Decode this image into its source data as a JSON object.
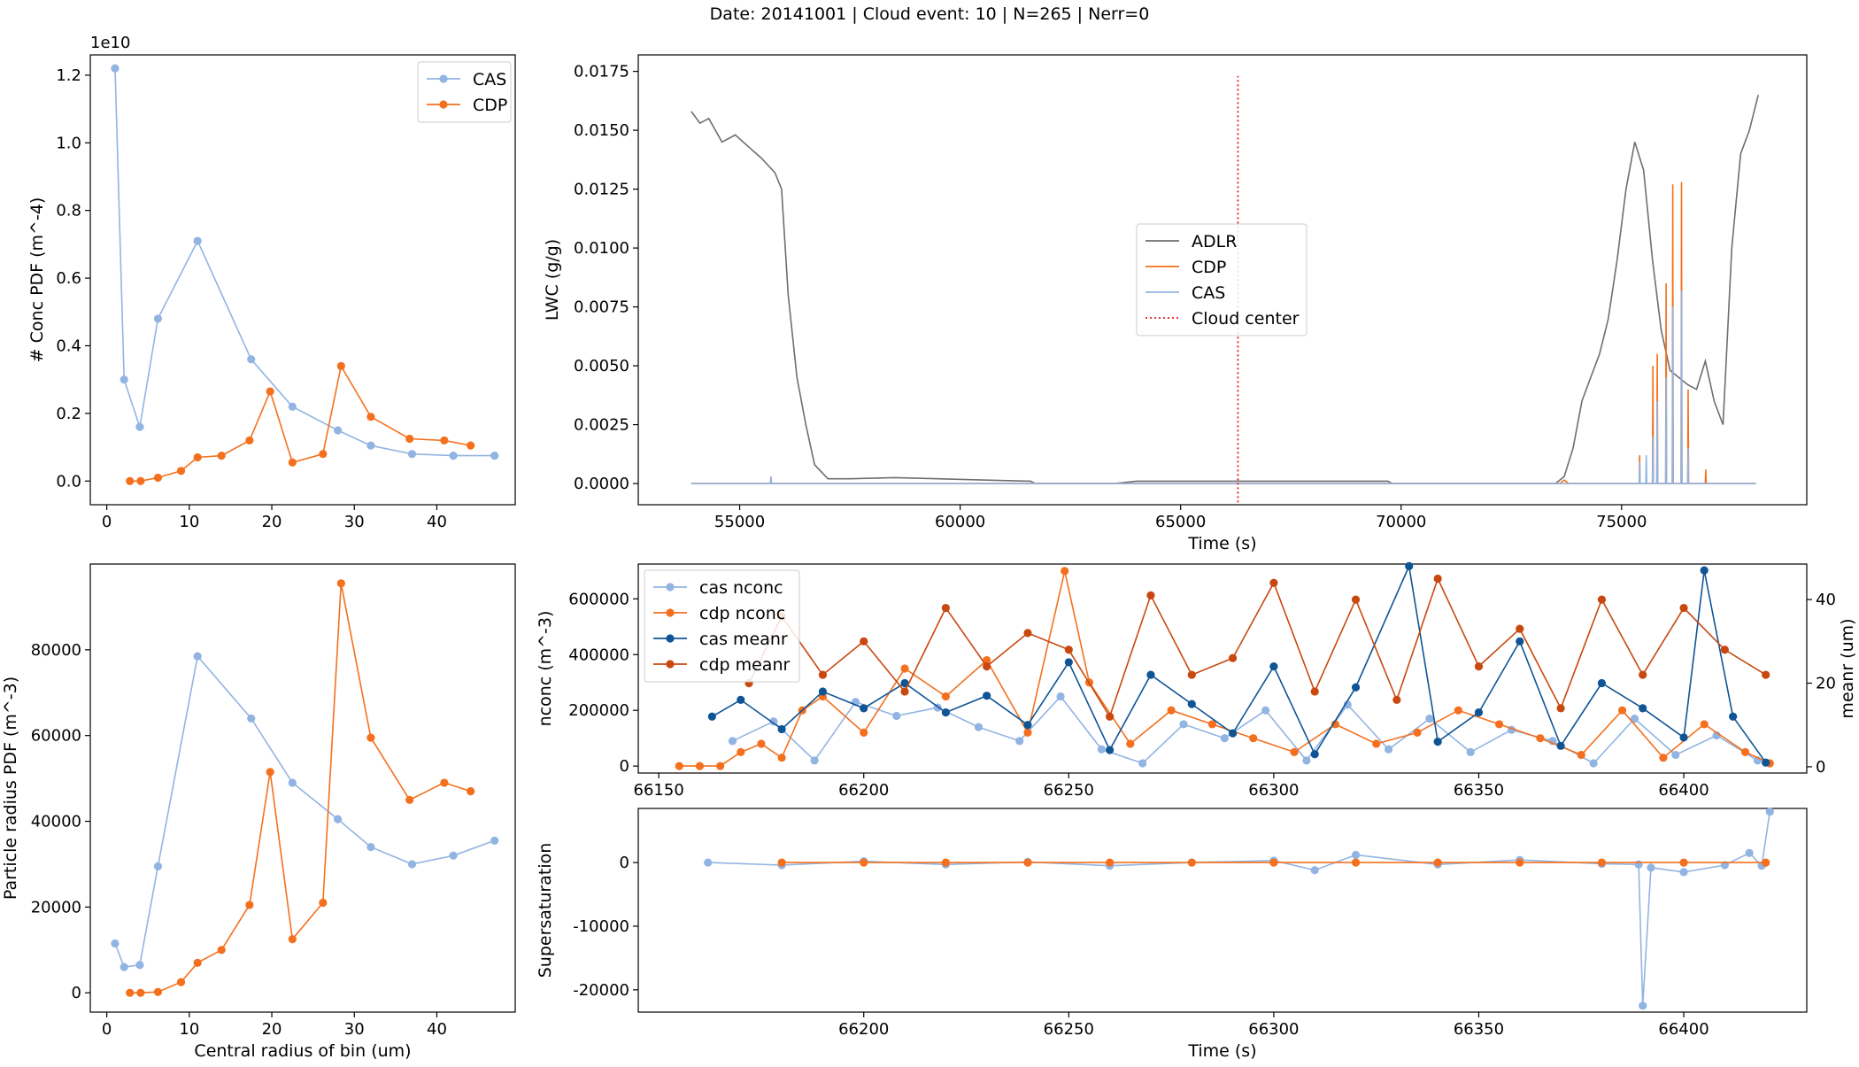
{
  "suptitle": "Date: 20141001 | Cloud event: 10 | N=265 | Nerr=0",
  "chart_data": [
    {
      "id": "conc",
      "type": "line",
      "ylabel": "# Conc PDF (m^-4)",
      "xlabel": "",
      "offset_text": "1e10",
      "xlim": [
        -2,
        49.5
      ],
      "ylim": [
        -0.07,
        1.26
      ],
      "xticks": [
        0,
        10,
        20,
        30,
        40
      ],
      "yticks": [
        0.0,
        0.2,
        0.4,
        0.6,
        0.8,
        1.0,
        1.2
      ],
      "ytick_labels": [
        "0.0",
        "0.2",
        "0.4",
        "0.6",
        "0.8",
        "1.0",
        "1.2"
      ],
      "legend": "upper right",
      "series": [
        {
          "name": "CAS",
          "color": "#92b4e3",
          "marker": true,
          "x": [
            1,
            2.1,
            4,
            6.2,
            11,
            17.5,
            22.5,
            28,
            32,
            37,
            42,
            47
          ],
          "y": [
            1.22,
            0.3,
            0.16,
            0.48,
            0.71,
            0.36,
            0.22,
            0.15,
            0.105,
            0.08,
            0.075,
            0.075
          ]
        },
        {
          "name": "CDP",
          "color": "#f4701e",
          "marker": true,
          "x": [
            2.8,
            4.1,
            6.2,
            9,
            11,
            13.9,
            17.3,
            19.8,
            22.5,
            26.2,
            28.4,
            32,
            36.7,
            40.9,
            44.1
          ],
          "y": [
            0.0,
            0.0,
            0.01,
            0.03,
            0.07,
            0.075,
            0.12,
            0.265,
            0.055,
            0.08,
            0.34,
            0.19,
            0.125,
            0.12,
            0.105
          ]
        }
      ]
    },
    {
      "id": "radius",
      "type": "line",
      "ylabel": "Particle radius PDF (m^-3)",
      "xlabel": "Central radius of bin (um)",
      "xlim": [
        -2,
        49.5
      ],
      "ylim": [
        -4500,
        100000
      ],
      "xticks": [
        0,
        10,
        20,
        30,
        40
      ],
      "yticks": [
        0,
        20000,
        40000,
        60000,
        80000
      ],
      "legend": "none",
      "series": [
        {
          "name": "CAS",
          "color": "#92b4e3",
          "marker": true,
          "x": [
            1,
            2.1,
            4,
            6.2,
            11,
            17.5,
            22.5,
            28,
            32,
            37,
            42,
            47
          ],
          "y": [
            11500,
            6000,
            6500,
            29500,
            78500,
            64000,
            49000,
            40500,
            34000,
            30000,
            32000,
            35500
          ]
        },
        {
          "name": "CDP",
          "color": "#f4701e",
          "marker": true,
          "x": [
            2.8,
            4.1,
            6.2,
            9,
            11,
            13.9,
            17.3,
            19.8,
            22.5,
            26.2,
            28.4,
            32,
            36.7,
            40.9,
            44.1
          ],
          "y": [
            0,
            0,
            200,
            2500,
            7000,
            10000,
            20500,
            51500,
            12500,
            21000,
            95500,
            59500,
            45000,
            49000,
            47000
          ]
        }
      ]
    },
    {
      "id": "lwc",
      "type": "line",
      "ylabel": "LWC (g/g)",
      "xlabel": "Time (s)",
      "xlim": [
        52700,
        79200
      ],
      "ylim": [
        -0.0009,
        0.0182
      ],
      "xticks": [
        55000,
        60000,
        65000,
        70000,
        75000
      ],
      "yticks": [
        0.0,
        0.0025,
        0.005,
        0.0075,
        0.01,
        0.0125,
        0.015,
        0.0175
      ],
      "ytick_labels": [
        "0.0000",
        "0.0025",
        "0.0050",
        "0.0075",
        "0.0100",
        "0.0125",
        "0.0150",
        "0.0175"
      ],
      "legend": "center",
      "series": [
        {
          "name": "ADLR",
          "color": "#6e6e6e",
          "marker": false,
          "x": [
            53900,
            54100,
            54300,
            54600,
            54900,
            55200,
            55500,
            55800,
            55950,
            56100,
            56300,
            56500,
            56700,
            57000,
            57500,
            58500,
            59500,
            60500,
            61600,
            61700,
            63500,
            64000,
            69700,
            69800,
            72500,
            73500,
            73700,
            73900,
            74100,
            74300,
            74500,
            74700,
            74900,
            75100,
            75300,
            75500,
            75700,
            75900,
            76100,
            76300,
            76500,
            76700,
            76900,
            77100,
            77300,
            77500,
            77700,
            77900,
            78100
          ],
          "y": [
            0.0158,
            0.0153,
            0.0155,
            0.0145,
            0.0148,
            0.0143,
            0.0138,
            0.0132,
            0.0125,
            0.008,
            0.0045,
            0.0025,
            0.0008,
            0.0002,
            0.0002,
            0.00025,
            0.0002,
            0.00015,
            0.0001,
            0.0,
            0.0,
            0.0001,
            0.0001,
            0.0,
            0.0,
            0.0,
            0.0003,
            0.0015,
            0.0035,
            0.0045,
            0.0055,
            0.007,
            0.0095,
            0.0125,
            0.0145,
            0.0133,
            0.0095,
            0.0065,
            0.0048,
            0.0045,
            0.0042,
            0.004,
            0.0052,
            0.0035,
            0.0025,
            0.01,
            0.014,
            0.015,
            0.0165
          ]
        },
        {
          "name": "CDP",
          "color": "#f4701e",
          "marker": false,
          "x": [
            53900,
            55700,
            55710,
            55720,
            73600,
            73700,
            73800,
            75400,
            75410,
            75420,
            75700,
            75710,
            75720,
            75800,
            75810,
            75820,
            76000,
            76010,
            76020,
            76150,
            76160,
            76170,
            76350,
            76360,
            76370,
            76500,
            76510,
            76520,
            76900,
            76910,
            76920,
            78050
          ],
          "y": [
            0.0,
            0.0,
            0.0003,
            0.0,
            0.0,
            0.00015,
            0.0,
            0.0,
            0.0012,
            0.0,
            0.0,
            0.005,
            0.0,
            0.0,
            0.0055,
            0.0,
            0.0,
            0.0085,
            0.0,
            0.0,
            0.0127,
            0.0,
            0.0,
            0.0128,
            0.0,
            0.0,
            0.004,
            0.0,
            0.0,
            0.0006,
            0.0,
            0.0
          ]
        },
        {
          "name": "CAS",
          "color": "#92b4e3",
          "marker": false,
          "x": [
            53900,
            55700,
            55710,
            55720,
            75400,
            75410,
            75420,
            75550,
            75560,
            75570,
            75700,
            75710,
            75720,
            75800,
            75810,
            75820,
            76000,
            76010,
            76020,
            76150,
            76160,
            76170,
            76350,
            76360,
            76370,
            76500,
            76510,
            76520,
            78050
          ],
          "y": [
            0.0,
            0.0,
            0.0003,
            0.0,
            0.0,
            0.0009,
            0.0,
            0.0,
            0.0012,
            0.0,
            0.0,
            0.002,
            0.0,
            0.0,
            0.0035,
            0.0,
            0.0,
            0.0045,
            0.0,
            0.0,
            0.0075,
            0.0,
            0.0,
            0.0082,
            0.0,
            0.0,
            0.0015,
            0.0,
            0.0
          ]
        }
      ],
      "vline": {
        "name": "Cloud center",
        "x": 66300,
        "ymin": -0.0008,
        "ymax": 0.0173,
        "color": "#e41a1c"
      }
    },
    {
      "id": "nconc",
      "type": "line",
      "ylabel": "nconc (m^-3)",
      "ylabel_right": "meanr (um)",
      "xlabel": "",
      "xlim": [
        66145,
        66430
      ],
      "ylim": [
        -25000,
        725000
      ],
      "ylim_right": [
        -1.5,
        48.5
      ],
      "xticks": [
        66150,
        66200,
        66250,
        66300,
        66350,
        66400
      ],
      "yticks": [
        0,
        200000,
        400000,
        600000
      ],
      "yticks_right": [
        0,
        20,
        40
      ],
      "legend": "upper left",
      "series": [
        {
          "name": "cas nconc",
          "color": "#92b4e3",
          "marker": true,
          "axis": "left",
          "x": [
            66168,
            66178,
            66188,
            66198,
            66208,
            66218,
            66228,
            66238,
            66248,
            66258,
            66268,
            66278,
            66288,
            66298,
            66308,
            66318,
            66328,
            66338,
            66348,
            66358,
            66368,
            66378,
            66388,
            66398,
            66408,
            66418
          ],
          "y": [
            90000,
            160000,
            20000,
            230000,
            180000,
            210000,
            140000,
            90000,
            250000,
            60000,
            10000,
            150000,
            100000,
            200000,
            20000,
            220000,
            60000,
            170000,
            50000,
            130000,
            90000,
            10000,
            170000,
            40000,
            110000,
            20000
          ]
        },
        {
          "name": "cdp nconc",
          "color": "#f4701e",
          "marker": true,
          "axis": "left",
          "x": [
            66155,
            66160,
            66165,
            66170,
            66175,
            66180,
            66185,
            66190,
            66200,
            66210,
            66220,
            66230,
            66240,
            66249,
            66255,
            66265,
            66275,
            66285,
            66295,
            66305,
            66315,
            66325,
            66335,
            66345,
            66355,
            66365,
            66375,
            66385,
            66395,
            66405,
            66415,
            66421
          ],
          "y": [
            0,
            0,
            0,
            50000,
            80000,
            30000,
            200000,
            250000,
            120000,
            350000,
            250000,
            380000,
            120000,
            700000,
            300000,
            80000,
            200000,
            150000,
            100000,
            50000,
            150000,
            80000,
            120000,
            200000,
            150000,
            100000,
            40000,
            200000,
            30000,
            150000,
            50000,
            10000
          ]
        },
        {
          "name": "cas meanr",
          "color": "#0f5494",
          "marker": true,
          "axis": "right",
          "x": [
            66163,
            66170,
            66180,
            66190,
            66200,
            66210,
            66220,
            66230,
            66240,
            66250,
            66260,
            66270,
            66280,
            66290,
            66300,
            66310,
            66320,
            66333,
            66340,
            66350,
            66360,
            66370,
            66380,
            66390,
            66400,
            66405,
            66412,
            66420
          ],
          "y": [
            12,
            16,
            9,
            18,
            14,
            20,
            13,
            17,
            10,
            25,
            4,
            22,
            15,
            8,
            24,
            3,
            19,
            48,
            6,
            13,
            30,
            5,
            20,
            14,
            7,
            47,
            12,
            1
          ]
        },
        {
          "name": "cdp meanr",
          "color": "#c8480f",
          "marker": true,
          "axis": "right",
          "x": [
            66172,
            66180,
            66190,
            66200,
            66210,
            66220,
            66230,
            66240,
            66250,
            66260,
            66270,
            66280,
            66290,
            66300,
            66310,
            66320,
            66330,
            66340,
            66350,
            66360,
            66370,
            66380,
            66390,
            66400,
            66410,
            66420
          ],
          "y": [
            20,
            36,
            22,
            30,
            18,
            38,
            24,
            32,
            28,
            12,
            41,
            22,
            26,
            44,
            18,
            40,
            16,
            45,
            24,
            33,
            14,
            40,
            22,
            38,
            28,
            22
          ]
        }
      ]
    },
    {
      "id": "supersat",
      "type": "line",
      "ylabel": "Supersaturation",
      "xlabel": "Time (s)",
      "xlim": [
        66145,
        66430
      ],
      "ylim": [
        -23500,
        8500
      ],
      "xticks": [
        66200,
        66250,
        66300,
        66350,
        66400
      ],
      "yticks": [
        -20000,
        -10000,
        0
      ],
      "legend": "none",
      "series": [
        {
          "name": "cas",
          "color": "#92b4e3",
          "marker": true,
          "x": [
            66162,
            66180,
            66200,
            66220,
            66240,
            66260,
            66280,
            66300,
            66310,
            66320,
            66340,
            66360,
            66380,
            66389,
            66390,
            66392,
            66400,
            66410,
            66416,
            66419,
            66421
          ],
          "y": [
            0,
            -400,
            200,
            -300,
            100,
            -500,
            0,
            300,
            -1200,
            1200,
            -300,
            400,
            -200,
            -300,
            -22500,
            -800,
            -1500,
            -400,
            1500,
            -500,
            8000
          ]
        },
        {
          "name": "cdp",
          "color": "#f4701e",
          "marker": true,
          "x": [
            66180,
            66200,
            66220,
            66240,
            66260,
            66280,
            66300,
            66320,
            66340,
            66360,
            66380,
            66400,
            66420
          ],
          "y": [
            0,
            0,
            0,
            0,
            0,
            0,
            0,
            0,
            0,
            0,
            0,
            0,
            0
          ]
        }
      ]
    }
  ]
}
